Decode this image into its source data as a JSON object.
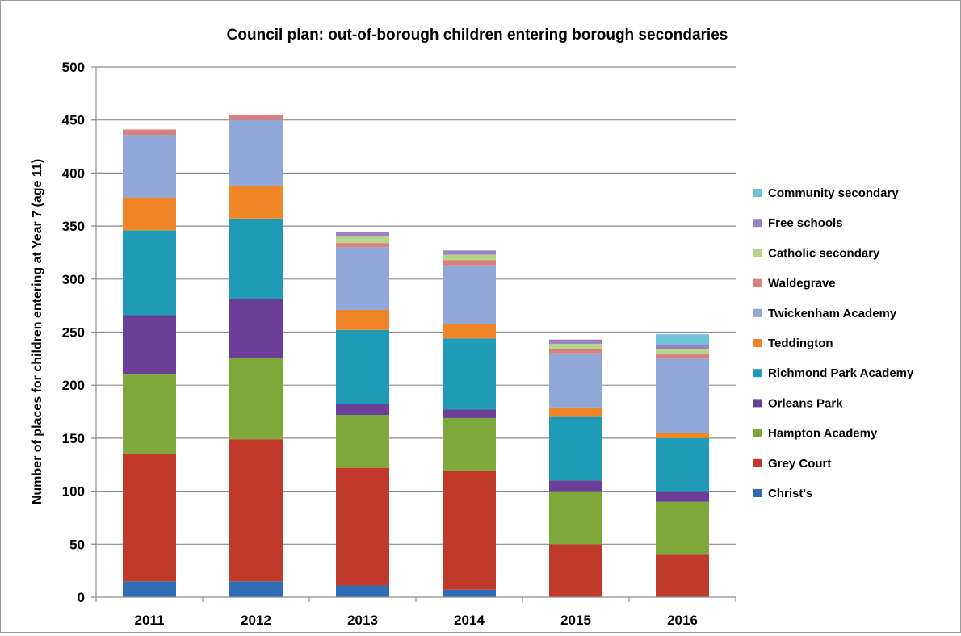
{
  "chart_data": {
    "type": "bar",
    "stacked": true,
    "title": "Council plan: out-of-borough children entering borough secondaries",
    "xlabel": "",
    "ylabel": "Number of places for children entering at Year 7 (age 11)",
    "ylim": [
      0,
      500
    ],
    "yticks": [
      0,
      50,
      100,
      150,
      200,
      250,
      300,
      350,
      400,
      450,
      500
    ],
    "grid": true,
    "legend_position": "right",
    "categories": [
      "2011",
      "2012",
      "2013",
      "2014",
      "2015",
      "2016"
    ],
    "series": [
      {
        "name": "Christ's",
        "color": "#2e6db5",
        "values": [
          15,
          15,
          11,
          7,
          0,
          0
        ]
      },
      {
        "name": "Grey Court",
        "color": "#c0392b",
        "values": [
          120,
          134,
          111,
          112,
          50,
          40
        ]
      },
      {
        "name": "Hampton Academy",
        "color": "#7ea83a",
        "values": [
          75,
          77,
          50,
          50,
          50,
          50
        ]
      },
      {
        "name": "Orleans Park",
        "color": "#6a3f97",
        "values": [
          56,
          55,
          10,
          8,
          10,
          10
        ]
      },
      {
        "name": "Richmond Park Academy",
        "color": "#1f9bb8",
        "values": [
          80,
          76,
          70,
          67,
          60,
          50
        ]
      },
      {
        "name": "Teddington",
        "color": "#ef8526",
        "values": [
          31,
          31,
          19,
          14,
          9,
          5
        ]
      },
      {
        "name": "Twickenham Academy",
        "color": "#8fa8d8",
        "values": [
          59,
          62,
          59,
          55,
          51,
          70
        ]
      },
      {
        "name": "Waldegrave",
        "color": "#d9807f",
        "values": [
          5,
          5,
          4,
          5,
          4,
          4
        ]
      },
      {
        "name": "Catholic secondary",
        "color": "#b6d48a",
        "values": [
          0,
          0,
          6,
          5,
          5,
          5
        ]
      },
      {
        "name": "Free schools",
        "color": "#9b80c4",
        "values": [
          0,
          0,
          4,
          4,
          4,
          4
        ]
      },
      {
        "name": "Community secondary",
        "color": "#6fc3d6",
        "values": [
          0,
          0,
          0,
          0,
          0,
          10
        ]
      }
    ]
  }
}
